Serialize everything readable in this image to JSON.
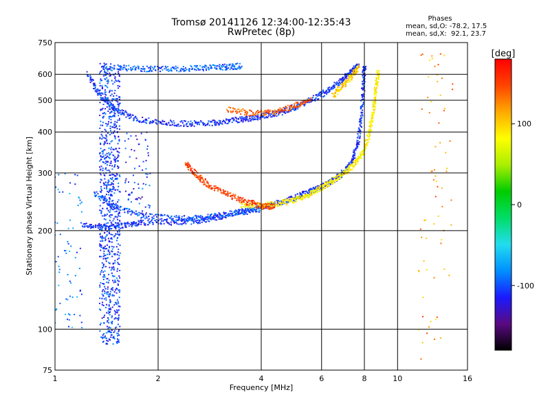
{
  "header": {
    "title_line1": "Tromsø 20141126 12:34:00-12:35:43",
    "title_line2": "RwPretec (8p)",
    "stats_title": "Phases",
    "stats_o": "mean, sd,O: -78.2, 17.5",
    "stats_x": "mean, sd,X:  92.1, 23.7"
  },
  "chart_data": {
    "type": "scatter",
    "xlabel": "Frequency [MHz]",
    "ylabel": "Stationary phase Virtual Height [km]",
    "x_scale": "log",
    "y_scale": "log",
    "xlim": [
      1,
      16
    ],
    "ylim": [
      75,
      750
    ],
    "x_ticks": [
      1,
      2,
      4,
      6,
      8,
      10,
      16
    ],
    "y_ticks": [
      75,
      100,
      200,
      300,
      400,
      500,
      600,
      750
    ],
    "grid": true,
    "colorbar": {
      "label": "[deg]",
      "range": [
        -180,
        180
      ],
      "ticks": [
        -100,
        0,
        100
      ],
      "colors": [
        "#000000",
        "#5a0a82",
        "#1a1aff",
        "#0090ff",
        "#22ddee",
        "#00dd66",
        "#00cc00",
        "#aaee00",
        "#ffff00",
        "#ffaa00",
        "#ff4400",
        "#ff0000"
      ]
    },
    "traces": [
      {
        "name": "",
        "phase": -110,
        "points": [
          [
            1.2,
            208
          ],
          [
            1.4,
            205
          ],
          [
            1.6,
            208
          ],
          [
            1.8,
            212
          ],
          [
            2.2,
            212
          ],
          [
            2.6,
            214
          ],
          [
            3.0,
            220
          ],
          [
            3.5,
            228
          ],
          [
            4.0,
            235
          ],
          [
            4.5,
            243
          ],
          [
            5.0,
            252
          ],
          [
            5.5,
            262
          ],
          [
            6.0,
            272
          ],
          [
            6.5,
            285
          ],
          [
            7.0,
            302
          ],
          [
            7.4,
            330
          ],
          [
            7.7,
            380
          ],
          [
            7.85,
            450
          ],
          [
            7.95,
            560
          ],
          [
            8.0,
            640
          ]
        ]
      },
      {
        "name": "",
        "phase": -100,
        "points": [
          [
            1.3,
            260
          ],
          [
            1.5,
            235
          ],
          [
            1.8,
            222
          ],
          [
            2.2,
            218
          ],
          [
            2.6,
            218
          ],
          [
            3.0,
            222
          ],
          [
            3.5,
            228
          ],
          [
            4.0,
            232
          ]
        ]
      },
      {
        "name": "",
        "phase": -110,
        "points": [
          [
            1.25,
            600
          ],
          [
            1.35,
            520
          ],
          [
            1.5,
            470
          ],
          [
            1.7,
            440
          ],
          [
            2.0,
            428
          ],
          [
            2.4,
            424
          ],
          [
            2.8,
            426
          ],
          [
            3.2,
            432
          ],
          [
            3.6,
            438
          ],
          [
            4.0,
            446
          ],
          [
            4.5,
            458
          ],
          [
            5.0,
            476
          ],
          [
            5.6,
            500
          ],
          [
            6.2,
            532
          ],
          [
            6.8,
            570
          ],
          [
            7.3,
            610
          ],
          [
            7.7,
            640
          ]
        ]
      },
      {
        "name": "",
        "phase": -95,
        "points": [
          [
            1.4,
            630
          ],
          [
            1.7,
            625
          ],
          [
            2.0,
            622
          ],
          [
            2.4,
            624
          ],
          [
            2.8,
            628
          ],
          [
            3.2,
            632
          ],
          [
            3.5,
            636
          ]
        ]
      },
      {
        "name": "",
        "phase": 85,
        "points": [
          [
            3.5,
            240
          ],
          [
            4.0,
            238
          ],
          [
            4.5,
            242
          ],
          [
            5.0,
            248
          ],
          [
            5.5,
            258
          ],
          [
            6.0,
            270
          ],
          [
            6.5,
            285
          ],
          [
            7.0,
            300
          ],
          [
            7.5,
            320
          ],
          [
            8.0,
            350
          ],
          [
            8.3,
            400
          ],
          [
            8.5,
            460
          ],
          [
            8.65,
            540
          ],
          [
            8.8,
            620
          ]
        ]
      },
      {
        "name": "",
        "phase": 150,
        "points": [
          [
            2.4,
            320
          ],
          [
            2.6,
            295
          ],
          [
            2.8,
            275
          ],
          [
            3.2,
            258
          ],
          [
            3.6,
            245
          ],
          [
            4.0,
            238
          ],
          [
            4.4,
            236
          ]
        ]
      },
      {
        "name": "",
        "phase": 140,
        "points": [
          [
            3.2,
            470
          ],
          [
            3.8,
            455
          ],
          [
            4.4,
            460
          ],
          [
            5.0,
            480
          ],
          [
            5.6,
            500
          ]
        ]
      },
      {
        "name": "",
        "phase": 100,
        "points": [
          [
            6.5,
            520
          ],
          [
            7.0,
            560
          ],
          [
            7.4,
            600
          ],
          [
            7.7,
            630
          ]
        ]
      }
    ],
    "vertical_band": {
      "x": [
        1.35,
        1.55
      ],
      "y": [
        90,
        650
      ],
      "phase": -105
    },
    "scatter_clusters": [
      {
        "name": "",
        "phase": -85,
        "x": [
          1.0,
          1.2
        ],
        "y": [
          100,
          300
        ]
      },
      {
        "name": "",
        "phase": 120,
        "x": [
          11.5,
          14.5
        ],
        "y": [
          80,
          700
        ]
      },
      {
        "name": "",
        "phase": -110,
        "x": [
          1.6,
          1.9
        ],
        "y": [
          220,
          400
        ]
      }
    ]
  }
}
